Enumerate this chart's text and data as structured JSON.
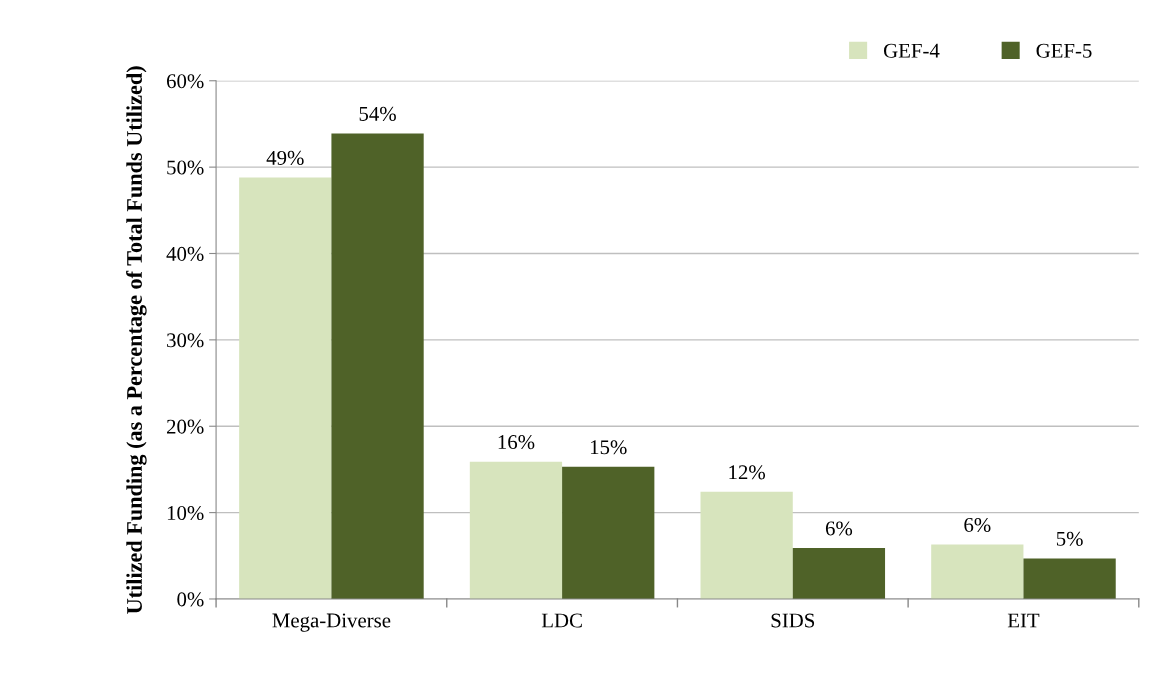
{
  "chart_data": {
    "type": "bar",
    "ylabel": "Utilized Funding (as a Percentage of Total Funds Utilized)",
    "categories": [
      "Mega-Diverse",
      "LDC",
      "SIDS",
      "EIT"
    ],
    "series": [
      {
        "name": "GEF-4",
        "color": "#d7e4bd",
        "values": [
          48.8,
          15.9,
          12.4,
          6.3
        ],
        "value_labels": [
          "49%",
          "16%",
          "12%",
          "6%"
        ]
      },
      {
        "name": "GEF-5",
        "color": "#4f6228",
        "values": [
          53.9,
          15.3,
          5.9,
          4.7
        ],
        "value_labels": [
          "54%",
          "15%",
          "6%",
          "5%"
        ]
      }
    ],
    "ylim": [
      0,
      60
    ],
    "yticks": [
      {
        "value": 0,
        "label": "0%"
      },
      {
        "value": 10,
        "label": "10%"
      },
      {
        "value": 20,
        "label": "20%"
      },
      {
        "value": 30,
        "label": "30%"
      },
      {
        "value": 40,
        "label": "40%"
      },
      {
        "value": 50,
        "label": "50%"
      },
      {
        "value": 60,
        "label": "60%"
      }
    ],
    "grid": "y",
    "legend": "top right"
  }
}
